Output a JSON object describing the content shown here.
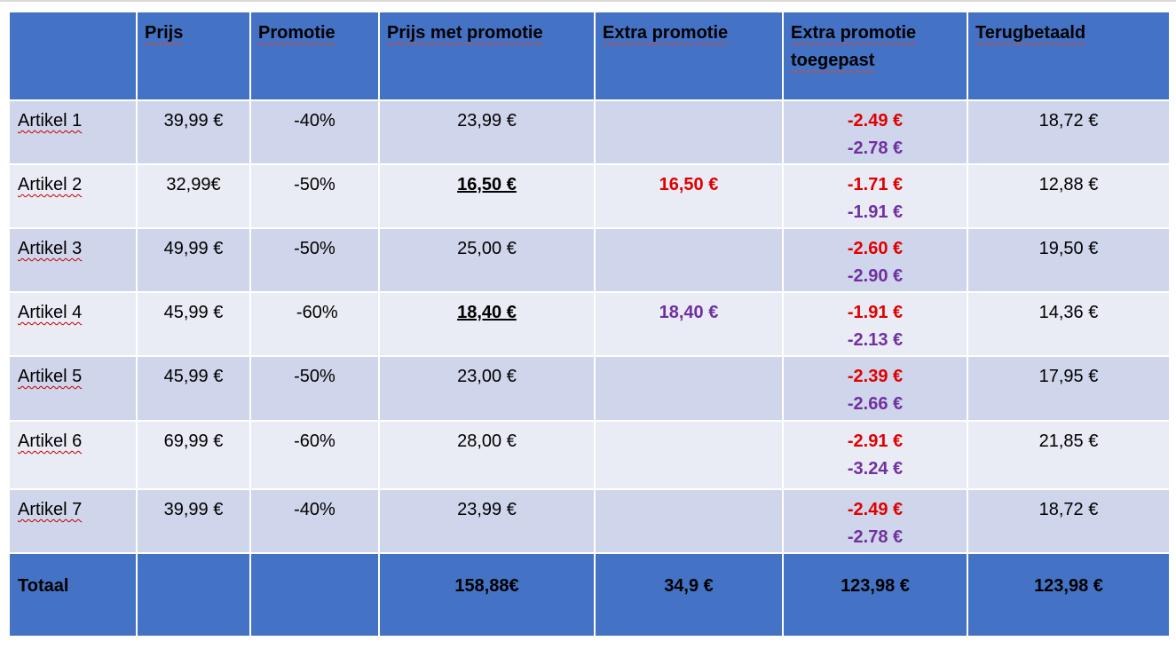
{
  "headers": [
    "",
    "Prijs",
    "Promotie",
    "Prijs met promotie",
    "Extra promotie",
    "Extra promotie toegepast",
    "Terugbetaald"
  ],
  "rows": [
    {
      "artikel": "Artikel 1",
      "prijs": "39,99 €",
      "promotie": "-40%",
      "prijs_met_promotie": "23,99 €",
      "extra_promotie": "",
      "extra_red": "-2.49 €",
      "extra_purple": "-2.78 €",
      "terugbetaald": "18,72 €"
    },
    {
      "artikel": "Artikel 2",
      "prijs": "32,99€",
      "promotie": "-50%",
      "prijs_met_promotie": "16,50 €",
      "extra_promotie": "16,50 €",
      "extra_red": "-1.71 €",
      "extra_purple": "-1.91 €",
      "terugbetaald": "12,88 €"
    },
    {
      "artikel": "Artikel 3",
      "prijs": "49,99 €",
      "promotie": "-50%",
      "prijs_met_promotie": "25,00 €",
      "extra_promotie": "",
      "extra_red": "-2.60 €",
      "extra_purple": "-2.90 €",
      "terugbetaald": "19,50 €"
    },
    {
      "artikel": "Artikel 4",
      "prijs": "45,99 €",
      "promotie": " -60%",
      "prijs_met_promotie": "18,40 €",
      "extra_promotie": "18,40 €",
      "extra_red": "-1.91 €",
      "extra_purple": "-2.13 €",
      "terugbetaald": "14,36 €"
    },
    {
      "artikel": "Artikel 5",
      "prijs": "45,99 €",
      "promotie": "-50%",
      "prijs_met_promotie": "23,00 €",
      "extra_promotie": "",
      "extra_red": "-2.39 €",
      "extra_purple": "-2.66 €",
      "terugbetaald": "17,95 €"
    },
    {
      "artikel": "Artikel 6",
      "prijs": "69,99 €",
      "promotie": "-60%",
      "prijs_met_promotie": "28,00 €",
      "extra_promotie": "",
      "extra_red": "-2.91 €",
      "extra_purple": "-3.24 €",
      "terugbetaald": "21,85 €"
    },
    {
      "artikel": "Artikel 7",
      "prijs": "39,99 €",
      "promotie": "-40%",
      "prijs_met_promotie": "23,99 €",
      "extra_promotie": "",
      "extra_red": "-2.49 €",
      "extra_purple": "-2.78 €",
      "terugbetaald": "18,72 €"
    }
  ],
  "footer": {
    "label": "Totaal",
    "prijs": "",
    "promotie": "",
    "prijs_met_promotie": "158,88€",
    "extra_promotie": "34,9 €",
    "extra_promotie_toegepast": "123,98 €",
    "terugbetaald": "123,98 €"
  },
  "colors": {
    "header_bg": "#4472c4",
    "row_dark": "#cfd5ea",
    "row_light": "#e9ebf5",
    "red": "#e00000",
    "purple": "#7030a0"
  }
}
